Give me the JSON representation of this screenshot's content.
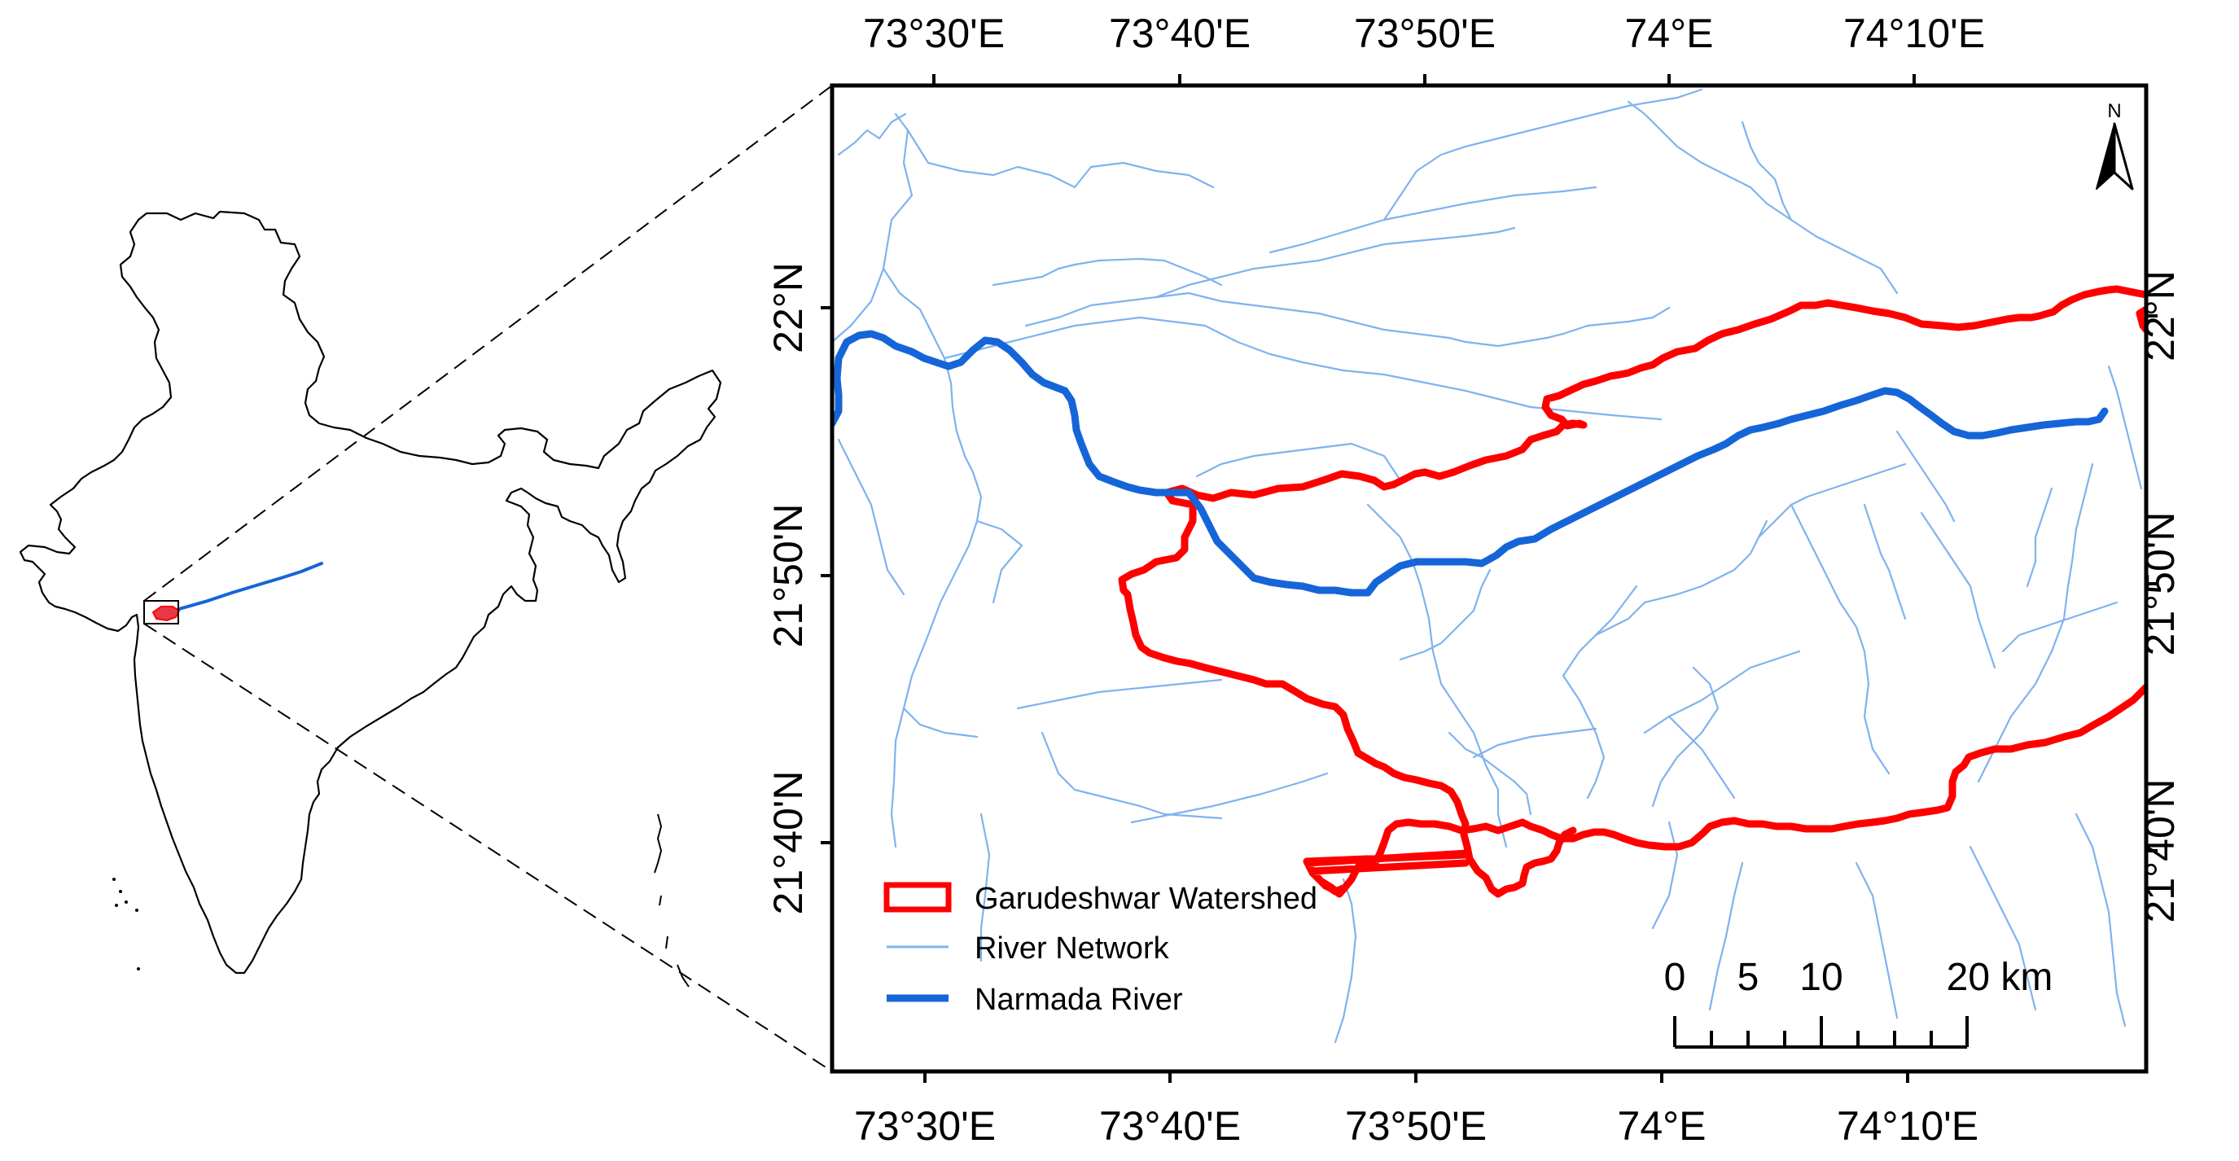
{
  "map": {
    "top_axis_labels": [
      "73°30'E",
      "73°40'E",
      "73°50'E",
      "74°E",
      "74°10'E"
    ],
    "bottom_axis_labels": [
      "73°30'E",
      "73°40'E",
      "73°50'E",
      "74°E",
      "74°10'E"
    ],
    "left_axis_labels": [
      "22°N",
      "21°50'N",
      "21°40'N"
    ],
    "right_axis_labels": [
      "22°N",
      "21°50'N",
      "21°40'N"
    ],
    "north_arrow_label": "N",
    "legend": {
      "watershed": "Garudeshwar Watershed",
      "river_network": "River Network",
      "narmada": "Narmada River"
    },
    "scale_bar": {
      "labels": [
        "0",
        "5",
        "10",
        "20 km"
      ]
    },
    "colors": {
      "watershed": "#ff0000",
      "narmada": "#1565d8",
      "river_network": "#7fb3ee",
      "frame": "#000000"
    }
  }
}
